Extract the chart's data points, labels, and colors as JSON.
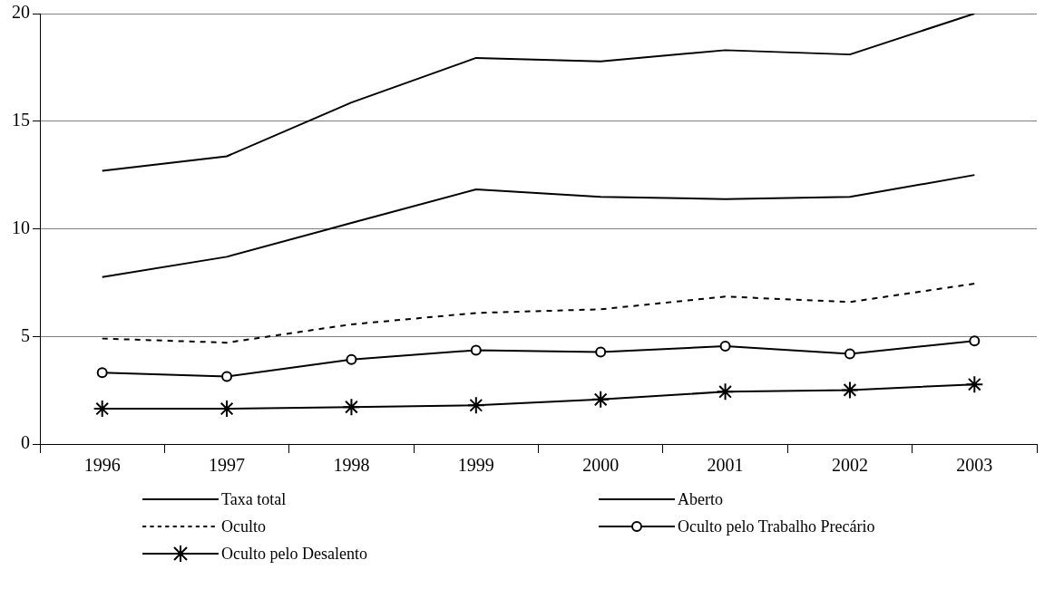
{
  "chart_data": {
    "type": "line",
    "categories": [
      "1996",
      "1997",
      "1998",
      "1999",
      "2000",
      "2001",
      "2002",
      "2003"
    ],
    "series": [
      {
        "name": "Taxa total",
        "color": "#000000",
        "line_style": "solid",
        "marker": "none",
        "values": [
          12.69,
          13.37,
          15.87,
          17.94,
          17.78,
          18.3,
          18.1,
          20
        ]
      },
      {
        "name": "Aberto",
        "color": "#000000",
        "line_style": "solid",
        "marker": "none",
        "values": [
          7.76,
          8.7,
          10.27,
          11.83,
          11.48,
          11.38,
          11.48,
          12.5
        ]
      },
      {
        "name": "Oculto",
        "color": "#000000",
        "line_style": "dashed",
        "marker": "none",
        "values": [
          4.9,
          4.71,
          5.56,
          6.09,
          6.26,
          6.85,
          6.6,
          7.45
        ]
      },
      {
        "name": "Oculto pelo Trabalho Precário",
        "color": "#000000",
        "line_style": "solid",
        "marker": "circle",
        "values": [
          3.32,
          3.14,
          3.93,
          4.36,
          4.27,
          4.55,
          4.19,
          4.79
        ]
      },
      {
        "name": "Oculto pelo Desalento",
        "color": "#000000",
        "line_style": "solid",
        "marker": "cross",
        "values": [
          1.64,
          1.64,
          1.72,
          1.8,
          2.07,
          2.43,
          2.51,
          2.77
        ]
      }
    ],
    "ylim": [
      0,
      20
    ],
    "yticks": [
      0,
      5,
      10,
      15,
      20
    ],
    "grid": "y",
    "legend": "bottom"
  }
}
